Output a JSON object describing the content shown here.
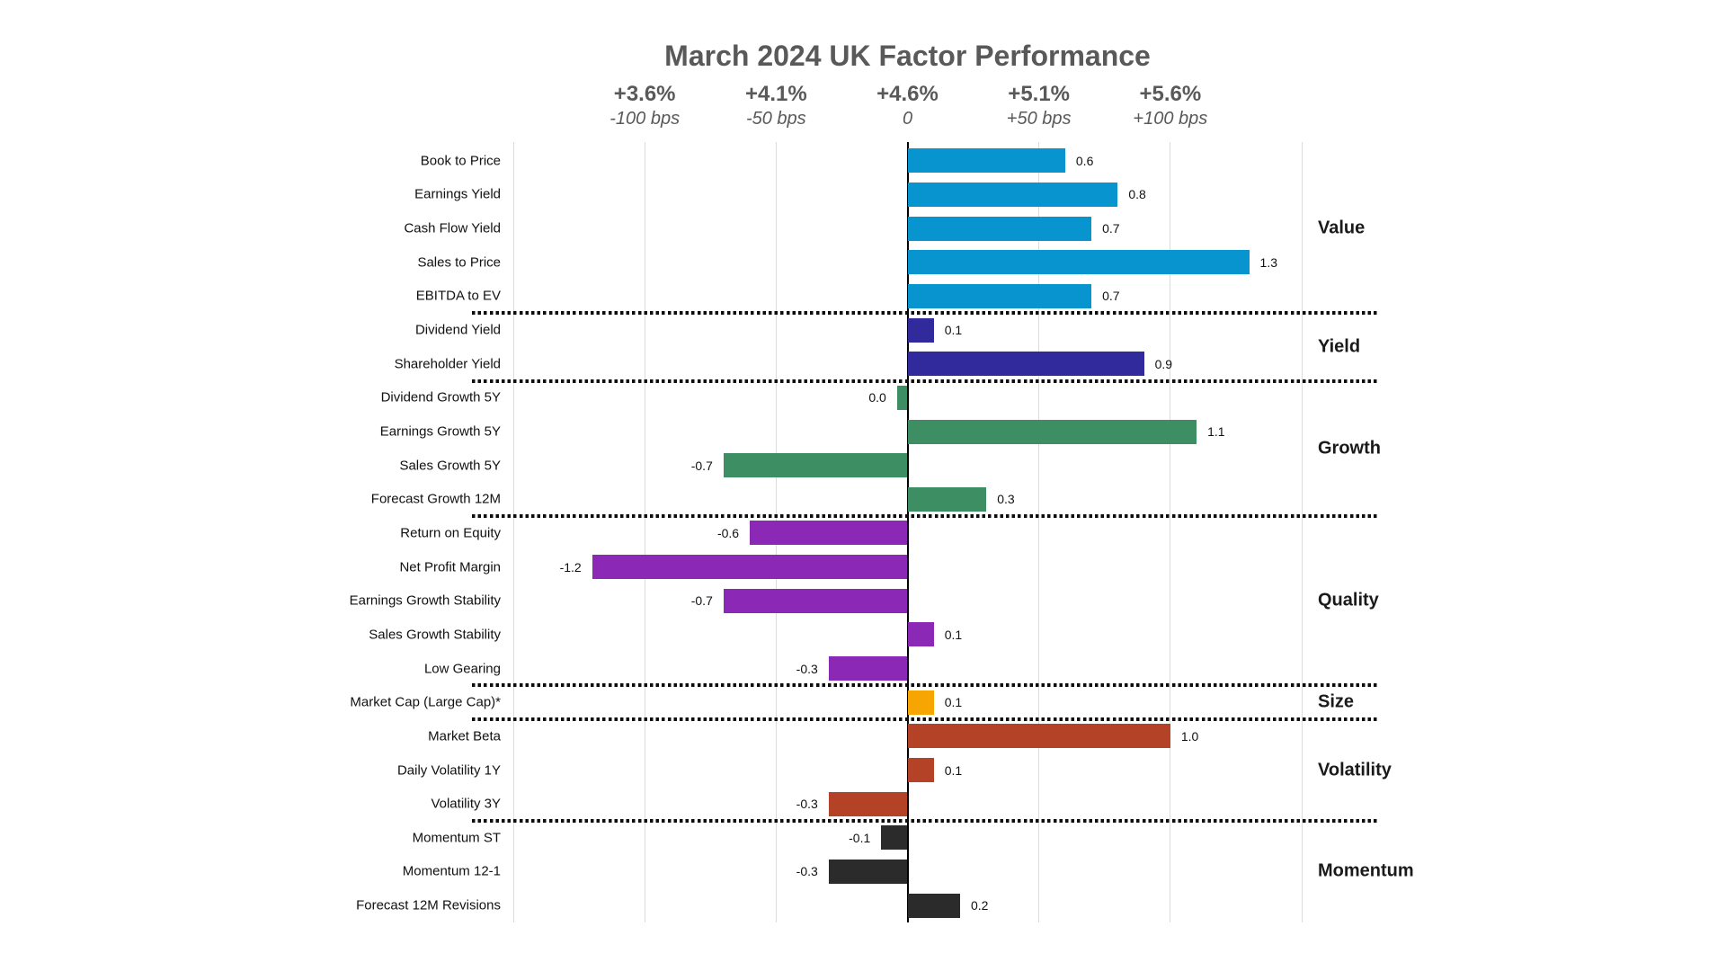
{
  "chart_data": {
    "type": "bar",
    "orientation": "horizontal",
    "title": "March 2024 UK Factor Performance",
    "background_color": "#FFFFFF",
    "gridline_color": "#DCDCDC",
    "zero_axis_color": "#000000",
    "title_color": "#595959",
    "axis_label_color": "#595959",
    "xlim": [
      -1.5,
      1.5
    ],
    "gridline_step": 0.5,
    "grid": true,
    "x_axis_ticks": [
      {
        "value": -1.0,
        "pct": "+3.6%",
        "bps": "-100 bps"
      },
      {
        "value": -0.5,
        "pct": "+4.1%",
        "bps": "-50 bps"
      },
      {
        "value": 0.0,
        "pct": "+4.6%",
        "bps": "0"
      },
      {
        "value": 0.5,
        "pct": "+5.1%",
        "bps": "+50 bps"
      },
      {
        "value": 1.0,
        "pct": "+5.6%",
        "bps": "+100 bps"
      }
    ],
    "sections": [
      {
        "name": "Value",
        "color": "#0894CE",
        "rows": [
          {
            "label": "Book to Price",
            "value": 0.6,
            "display": "0.6"
          },
          {
            "label": "Earnings Yield",
            "value": 0.8,
            "display": "0.8"
          },
          {
            "label": "Cash Flow Yield",
            "value": 0.7,
            "display": "0.7"
          },
          {
            "label": "Sales to Price",
            "value": 1.3,
            "display": "1.3"
          },
          {
            "label": "EBITDA to EV",
            "value": 0.7,
            "display": "0.7"
          }
        ]
      },
      {
        "name": "Yield",
        "color": "#312A9D",
        "rows": [
          {
            "label": "Dividend Yield",
            "value": 0.1,
            "display": "0.1"
          },
          {
            "label": "Shareholder Yield",
            "value": 0.9,
            "display": "0.9"
          }
        ]
      },
      {
        "name": "Growth",
        "color": "#3E8E63",
        "rows": [
          {
            "label": "Dividend Growth 5Y",
            "value": -0.04,
            "display": "0.0"
          },
          {
            "label": "Earnings Growth 5Y",
            "value": 1.1,
            "display": "1.1"
          },
          {
            "label": "Sales Growth 5Y",
            "value": -0.7,
            "display": "-0.7"
          },
          {
            "label": "Forecast Growth 12M",
            "value": 0.3,
            "display": "0.3"
          }
        ]
      },
      {
        "name": "Quality",
        "color": "#8B28B5",
        "rows": [
          {
            "label": "Return on Equity",
            "value": -0.6,
            "display": "-0.6"
          },
          {
            "label": "Net Profit Margin",
            "value": -1.2,
            "display": "-1.2"
          },
          {
            "label": "Earnings Growth Stability",
            "value": -0.7,
            "display": "-0.7"
          },
          {
            "label": "Sales Growth Stability",
            "value": 0.1,
            "display": "0.1"
          },
          {
            "label": "Low Gearing",
            "value": -0.3,
            "display": "-0.3"
          }
        ]
      },
      {
        "name": "Size",
        "color": "#F6A502",
        "rows": [
          {
            "label": "Market Cap (Large Cap)*",
            "value": 0.1,
            "display": "0.1"
          }
        ]
      },
      {
        "name": "Volatility",
        "color": "#B34227",
        "rows": [
          {
            "label": "Market Beta",
            "value": 1.0,
            "display": "1.0"
          },
          {
            "label": "Daily Volatility 1Y",
            "value": 0.1,
            "display": "0.1"
          },
          {
            "label": "Volatility 3Y",
            "value": -0.3,
            "display": "-0.3"
          }
        ]
      },
      {
        "name": "Momentum",
        "color": "#2B2B2B",
        "rows": [
          {
            "label": "Momentum ST",
            "value": -0.1,
            "display": "-0.1"
          },
          {
            "label": "Momentum 12-1",
            "value": -0.3,
            "display": "-0.3"
          },
          {
            "label": "Forecast 12M Revisions",
            "value": 0.2,
            "display": "0.2"
          }
        ]
      }
    ]
  }
}
